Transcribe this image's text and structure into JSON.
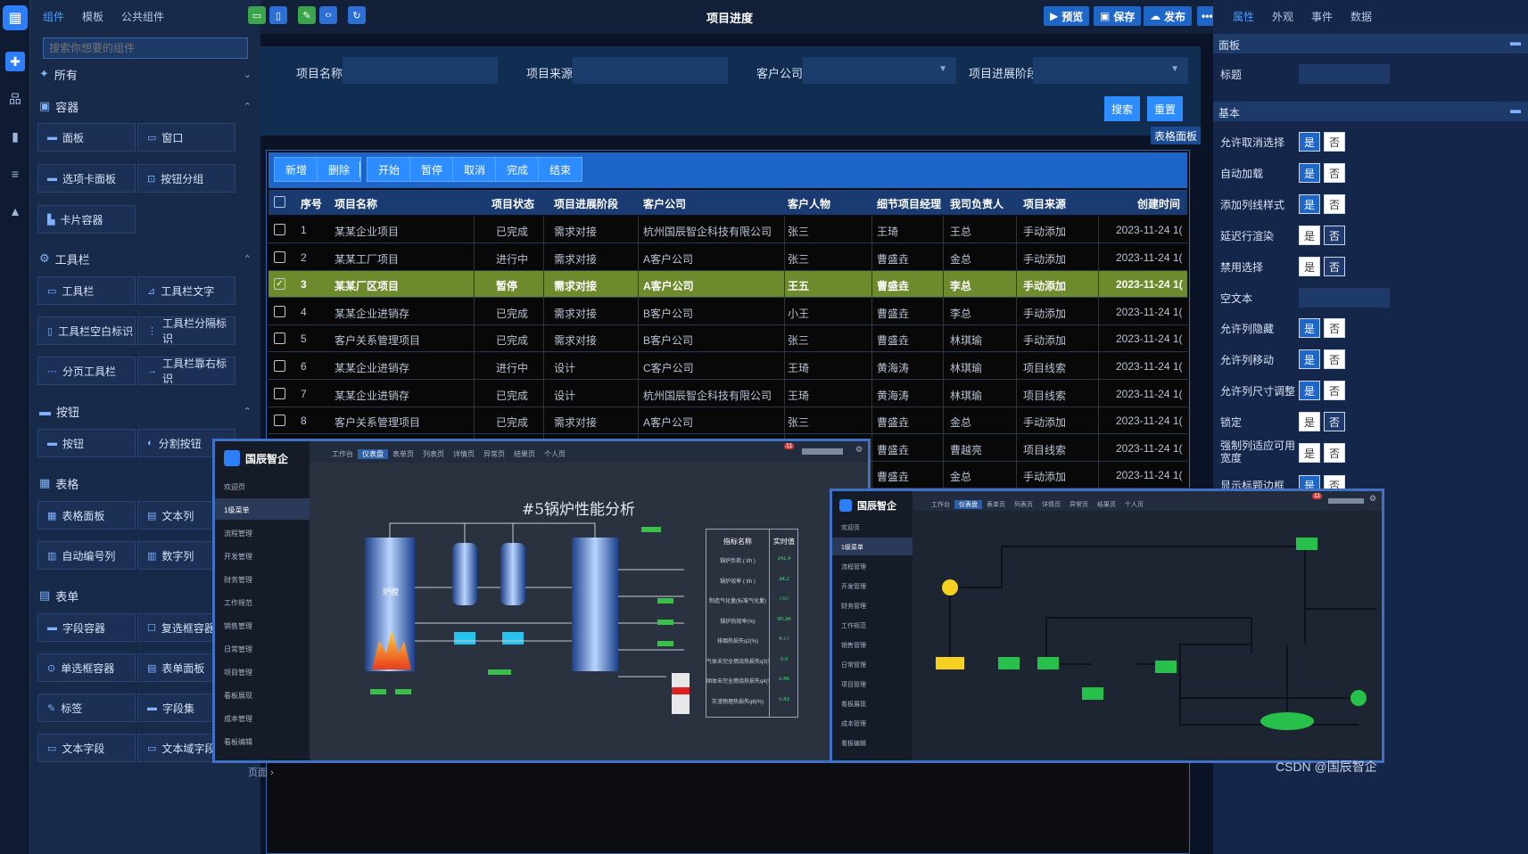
{
  "rail": {
    "icons": [
      "grid-icon",
      "puzzle-icon",
      "sitemap-icon",
      "book-icon",
      "database-icon",
      "chart-icon"
    ]
  },
  "components": {
    "tabs": [
      "组件",
      "模板",
      "公共组件"
    ],
    "search_placeholder": "搜索你想要的组件",
    "all_label": "所有",
    "sections": [
      {
        "title": "容器",
        "items": [
          "面板",
          "窗口",
          "选项卡面板",
          "按钮分组",
          "卡片容器"
        ]
      },
      {
        "title": "工具栏",
        "items": [
          "工具栏",
          "工具栏文字",
          "工具栏空白标识",
          "工具栏分隔标识",
          "分页工具栏",
          "工具栏靠右标识"
        ]
      },
      {
        "title": "按钮",
        "items": [
          "按钮",
          "分割按钮"
        ]
      },
      {
        "title": "表格",
        "items": [
          "表格面板",
          "文本列",
          "自动编号列",
          "数字列"
        ]
      },
      {
        "title": "表单",
        "items": [
          "字段容器",
          "复选框容器",
          "单选框容器",
          "表单面板",
          "标签",
          "字段集",
          "文本字段",
          "文本域字段"
        ]
      }
    ]
  },
  "toolbar": {
    "title": "项目进度",
    "preview": "预览",
    "save": "保存",
    "publish": "发布",
    "more": "•••"
  },
  "props": {
    "tabs": [
      "属性",
      "外观",
      "事件",
      "数据"
    ],
    "panel_header": "面板",
    "title_label": "标题",
    "basic_header": "基本",
    "yes": "是",
    "no": "否",
    "rows": [
      "允许取消选择",
      "自动加载",
      "添加列线样式",
      "延迟行渲染",
      "禁用选择",
      "空文本",
      "允许列隐藏",
      "允许列移动",
      "允许列尺寸调整",
      "锁定",
      "强制列适应可用宽度",
      "显示标题边框"
    ]
  },
  "search": {
    "name_label": "项目名称:",
    "source_label": "项目来源:",
    "customer_label": "客户公司:",
    "stage_label": "项目进展阶段:",
    "search_btn": "搜索",
    "reset_btn": "重置",
    "tag": "表格面板"
  },
  "table": {
    "buttons": [
      "新增",
      "删除",
      "开始",
      "暂停",
      "取消",
      "完成",
      "结束"
    ],
    "columns": [
      "序号",
      "项目名称",
      "项目状态",
      "项目进展阶段",
      "客户公司",
      "客户人物",
      "细节项目经理",
      "我司负责人",
      "项目来源",
      "创建时间"
    ],
    "rows": [
      [
        "1",
        "某某企业项目",
        "已完成",
        "需求对接",
        "杭州国辰智企科技有限公司",
        "张三",
        "王琦",
        "王总",
        "手动添加",
        "2023-11-24 1("
      ],
      [
        "2",
        "某某工厂项目",
        "进行中",
        "需求对接",
        "A客户公司",
        "张三",
        "曹盛垚",
        "金总",
        "手动添加",
        "2023-11-24 1("
      ],
      [
        "3",
        "某某厂区项目",
        "暂停",
        "需求对接",
        "A客户公司",
        "王五",
        "曹盛垚",
        "李总",
        "手动添加",
        "2023-11-24 1("
      ],
      [
        "4",
        "某某企业进销存",
        "已完成",
        "需求对接",
        "B客户公司",
        "小王",
        "曹盛垚",
        "李总",
        "手动添加",
        "2023-11-24 1("
      ],
      [
        "5",
        "客户关系管理项目",
        "已完成",
        "需求对接",
        "B客户公司",
        "张三",
        "曹盛垚",
        "林琪瑜",
        "手动添加",
        "2023-11-24 1("
      ],
      [
        "6",
        "某某企业进销存",
        "进行中",
        "设计",
        "C客户公司",
        "王琦",
        "黄海涛",
        "林琪瑜",
        "项目线索",
        "2023-11-24 1("
      ],
      [
        "7",
        "某某企业进销存",
        "已完成",
        "设计",
        "杭州国辰智企科技有限公司",
        "王琦",
        "黄海涛",
        "林琪瑜",
        "项目线索",
        "2023-11-24 1("
      ],
      [
        "8",
        "客户关系管理项目",
        "已完成",
        "需求对接",
        "A客户公司",
        "张三",
        "曹盛垚",
        "金总",
        "手动添加",
        "2023-11-24 1("
      ],
      [
        "",
        "",
        "",
        "",
        "",
        "",
        "曹盛垚",
        "曹越亮",
        "项目线索",
        "2023-11-24 1("
      ],
      [
        "",
        "",
        "",
        "",
        "",
        "",
        "曹盛垚",
        "金总",
        "手动添加",
        "2023-11-24 1("
      ]
    ],
    "selected_row": 2
  },
  "preview1": {
    "brand": "国辰智企",
    "tabs": [
      "工作台",
      "仪表盘",
      "表单页",
      "列表页",
      "详情页",
      "异常页",
      "结果页",
      "个人页"
    ],
    "menu": [
      "欢迎页",
      "1级菜单",
      "流程管理",
      "开发管理",
      "财务管理",
      "工作规范",
      "销售管理",
      "日常管理",
      "项目管理",
      "看板展现",
      "成本管理",
      "看板编辑"
    ],
    "badge": "11",
    "diagram_title": "#5锅炉性能分析",
    "furnace_label": "炉膛",
    "table_head": [
      "指标名称",
      "实时值"
    ],
    "table_rows": [
      [
        "锅炉负荷 ( t/h )",
        "241.4"
      ],
      [
        "锅炉效率 ( t/h )",
        "34.2"
      ],
      [
        "制造气化量(标准气化量)",
        "7.07"
      ],
      [
        "锅炉热效率(%)",
        "90.34"
      ],
      [
        "排烟热损失q2(%)",
        "4.77"
      ],
      [
        "气体未完全燃烧热损失q3(%)",
        "0.0"
      ],
      [
        "固体未完全燃烧热损失q4(%)",
        "2.46"
      ],
      [
        "灰渣物理热损失q6(%)",
        "0.43"
      ]
    ]
  },
  "preview2": {
    "brand": "国辰智企",
    "tabs": [
      "工作台",
      "仪表盘",
      "表单页",
      "列表页",
      "详情页",
      "异常页",
      "结果页",
      "个人页"
    ],
    "menu": [
      "欢迎页",
      "1级菜单",
      "流程管理",
      "开发管理",
      "财务管理",
      "工作规范",
      "销售管理",
      "日常管理",
      "项目管理",
      "看板展现",
      "成本管理",
      "看板编辑"
    ],
    "badge": "11"
  },
  "pager": "页面",
  "watermark": "CSDN @国辰智企",
  "colors": {
    "accent": "#2d8cff",
    "selected_row": "#6d8a2d",
    "frame": "#3f71c7"
  }
}
